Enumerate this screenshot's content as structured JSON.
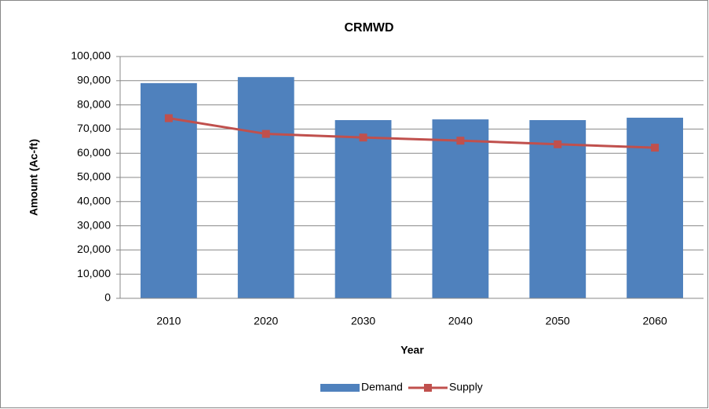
{
  "chart_data": {
    "type": "bar-line",
    "title": "CRMWD",
    "x_label": "Year",
    "y_label": "Amount (Ac-ft)",
    "categories": [
      "2010",
      "2020",
      "2030",
      "2040",
      "2050",
      "2060"
    ],
    "series": [
      {
        "name": "Demand",
        "type": "bar",
        "color": "#4f81bd",
        "values": [
          89000,
          91500,
          73700,
          74000,
          73700,
          74700
        ]
      },
      {
        "name": "Supply",
        "type": "line",
        "color": "#c0504d",
        "values": [
          74500,
          68000,
          66500,
          65200,
          63700,
          62300
        ]
      }
    ],
    "ylim": [
      0,
      100000
    ],
    "yticks": [
      0,
      {
        "value": 10000,
        "label": "10,000"
      },
      {
        "value": 20000,
        "label": "20,000"
      },
      {
        "value": 30000,
        "label": "30,000"
      },
      {
        "value": 40000,
        "label": "40,000"
      },
      {
        "value": 50000,
        "label": "50,000"
      },
      {
        "value": 60000,
        "label": "60,000"
      },
      {
        "value": 70000,
        "label": "70,000"
      },
      {
        "value": 80000,
        "label": "80,000"
      },
      {
        "value": 90000,
        "label": "90,000"
      },
      {
        "value": 100000,
        "label": "100,000"
      }
    ],
    "grid": true,
    "legend": "bottom"
  }
}
